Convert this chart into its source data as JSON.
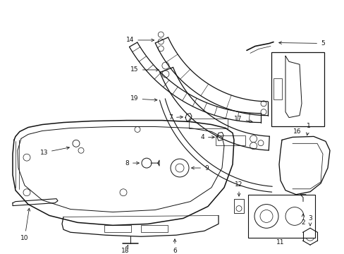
{
  "bg": "#ffffff",
  "lc": "#111111",
  "fs": 6.5,
  "figw": 4.89,
  "figh": 3.6,
  "dpi": 100
}
